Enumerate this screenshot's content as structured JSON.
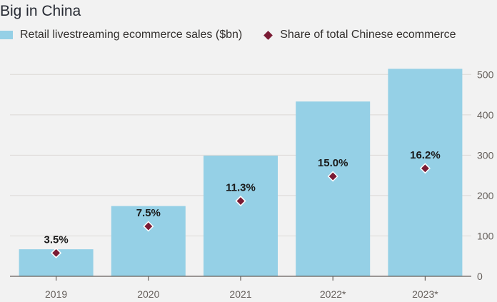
{
  "chart_data": {
    "type": "bar",
    "title": "Big in China",
    "categories": [
      "2019",
      "2020",
      "2021",
      "2022*",
      "2023*"
    ],
    "series": [
      {
        "name": "Retail livestreaming ecommerce sales ($bn)",
        "kind": "bar",
        "axis": "right",
        "values": [
          67,
          174,
          299,
          433,
          514
        ]
      },
      {
        "name": "Share of total Chinese ecommerce",
        "kind": "marker",
        "values": [
          3.5,
          7.5,
          11.3,
          15.0,
          16.2
        ],
        "labels": [
          "3.5%",
          "7.5%",
          "11.3%",
          "15.0%",
          "16.2%"
        ]
      }
    ],
    "y_axis": {
      "position": "right",
      "ylim": [
        0,
        520
      ],
      "ticks": [
        0,
        100,
        200,
        300,
        400,
        500
      ]
    },
    "share_axis_max": 31.5,
    "grid": true,
    "legend_position": "top-left",
    "colors": {
      "bar": "#95d0e6",
      "marker": "#7a1b34"
    }
  }
}
